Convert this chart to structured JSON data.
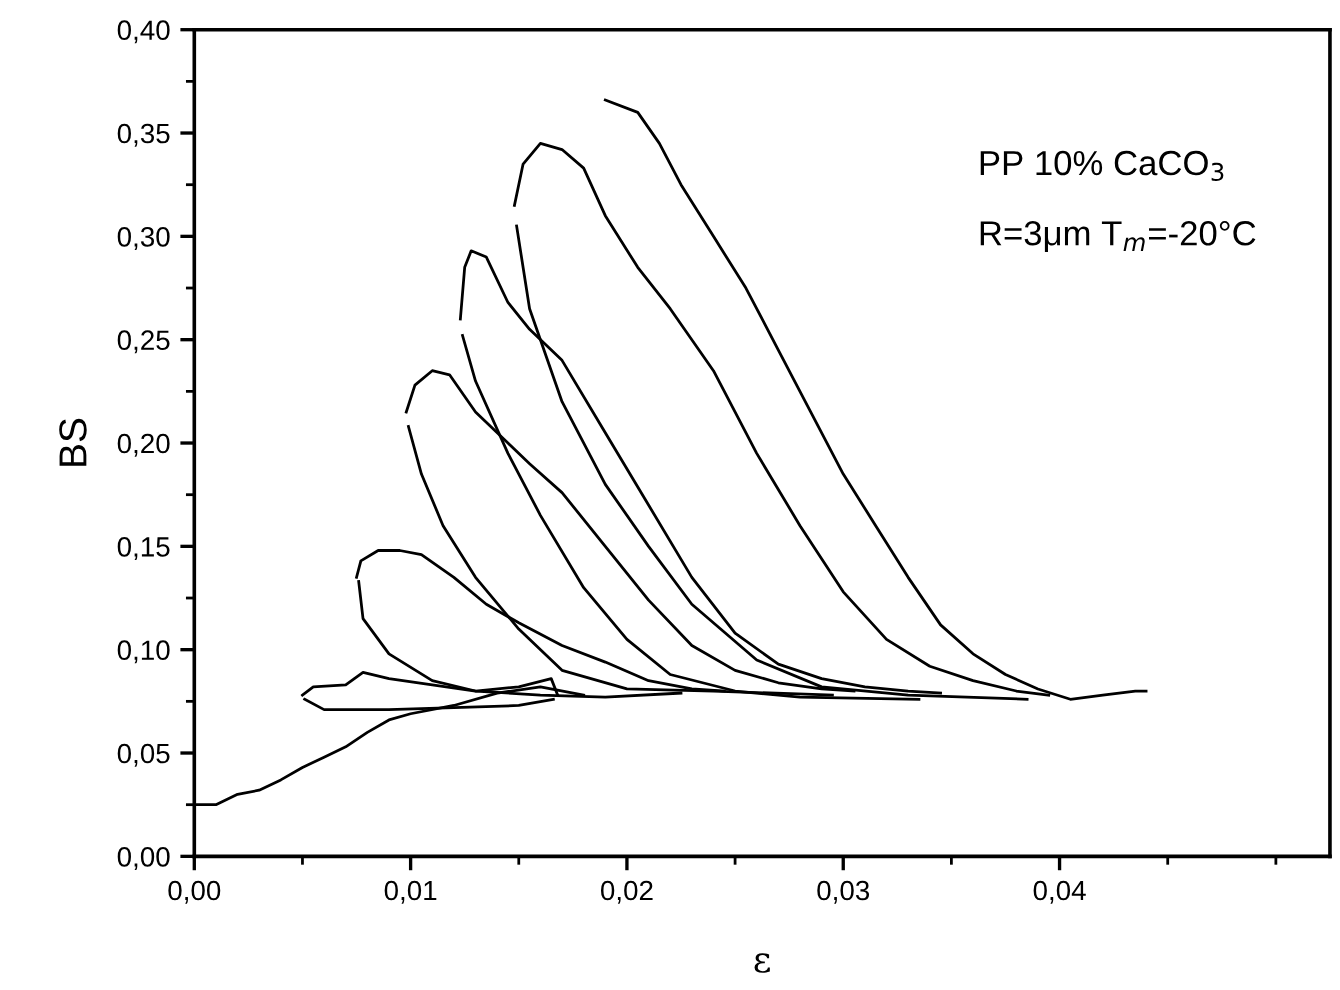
{
  "chart_data": {
    "type": "line",
    "xlabel": "ε",
    "ylabel": "BS",
    "annotations": [
      "PP 10% CaCO$_{3}$",
      "R=3μm T$_{m}$=-20°C"
    ],
    "xlim": [
      0,
      0.0525
    ],
    "ylim": [
      0,
      0.4
    ],
    "xticks": [
      {
        "value": 0,
        "label": "0,00"
      },
      {
        "value": 0.01,
        "label": "0,01"
      },
      {
        "value": 0.02,
        "label": "0,02"
      },
      {
        "value": 0.03,
        "label": "0,03"
      },
      {
        "value": 0.04,
        "label": "0,04"
      }
    ],
    "yticks": [
      {
        "value": 0,
        "label": "0,00"
      },
      {
        "value": 0.05,
        "label": "0,05"
      },
      {
        "value": 0.1,
        "label": "0,10"
      },
      {
        "value": 0.15,
        "label": "0,15"
      },
      {
        "value": 0.2,
        "label": "0,20"
      },
      {
        "value": 0.25,
        "label": "0,25"
      },
      {
        "value": 0.3,
        "label": "0,30"
      },
      {
        "value": 0.35,
        "label": "0,35"
      },
      {
        "value": 0.4,
        "label": "0,40"
      }
    ],
    "grid": false,
    "legend": false,
    "marker": "none",
    "line_style": "solid",
    "series": [
      {
        "color": "#000000",
        "x": [
          0,
          0.001,
          0.002,
          0.003,
          0.004,
          0.005,
          0.006,
          0.007,
          0.008,
          0.009,
          0.01,
          0.012,
          0.014,
          0.016,
          0.018
        ],
        "values": [
          0.025,
          0.025,
          0.03,
          0.032,
          0.037,
          0.043,
          0.048,
          0.053,
          0.06,
          0.066,
          0.069,
          0.073,
          0.079,
          0.082,
          0.078
        ]
      },
      {
        "color": "#000000",
        "x": [
          0.005,
          0.0055,
          0.007,
          0.0078,
          0.009,
          0.011,
          0.013,
          0.015,
          0.0165,
          0.0168
        ],
        "values": [
          0.078,
          0.082,
          0.083,
          0.089,
          0.086,
          0.083,
          0.08,
          0.082,
          0.086,
          0.078
        ]
      },
      {
        "color": "#000000",
        "x": [
          0.0051,
          0.006,
          0.009,
          0.012,
          0.015,
          0.0166
        ],
        "values": [
          0.076,
          0.071,
          0.071,
          0.072,
          0.073,
          0.076
        ]
      },
      {
        "color": "#000000",
        "x": [
          0.0075,
          0.0077,
          0.0085,
          0.0095,
          0.0105,
          0.012,
          0.0135,
          0.015,
          0.017,
          0.019,
          0.021,
          0.023,
          0.0245
        ],
        "values": [
          0.135,
          0.143,
          0.148,
          0.148,
          0.146,
          0.135,
          0.122,
          0.113,
          0.102,
          0.094,
          0.085,
          0.081,
          0.08
        ]
      },
      {
        "color": "#000000",
        "x": [
          0.0076,
          0.0078,
          0.009,
          0.011,
          0.013,
          0.016,
          0.019,
          0.0225
        ],
        "values": [
          0.133,
          0.115,
          0.098,
          0.085,
          0.08,
          0.078,
          0.077,
          0.079
        ]
      },
      {
        "color": "#000000",
        "x": [
          0.0098,
          0.0102,
          0.011,
          0.0118,
          0.013,
          0.0145,
          0.0155,
          0.017,
          0.019,
          0.021,
          0.023,
          0.025,
          0.027,
          0.029,
          0.0305
        ],
        "values": [
          0.215,
          0.228,
          0.235,
          0.233,
          0.215,
          0.2,
          0.19,
          0.176,
          0.15,
          0.124,
          0.102,
          0.09,
          0.084,
          0.081,
          0.08
        ]
      },
      {
        "color": "#000000",
        "x": [
          0.0099,
          0.0105,
          0.0115,
          0.013,
          0.015,
          0.017,
          0.02,
          0.024,
          0.0295
        ],
        "values": [
          0.208,
          0.185,
          0.16,
          0.135,
          0.11,
          0.09,
          0.081,
          0.08,
          0.078
        ]
      },
      {
        "color": "#000000",
        "x": [
          0.0123,
          0.0125,
          0.0128,
          0.0135,
          0.0145,
          0.0155,
          0.017,
          0.019,
          0.021,
          0.023,
          0.025,
          0.027,
          0.029,
          0.031,
          0.033,
          0.0345
        ],
        "values": [
          0.26,
          0.285,
          0.293,
          0.29,
          0.268,
          0.255,
          0.24,
          0.205,
          0.17,
          0.135,
          0.108,
          0.093,
          0.086,
          0.082,
          0.08,
          0.079
        ]
      },
      {
        "color": "#000000",
        "x": [
          0.0124,
          0.013,
          0.0145,
          0.016,
          0.018,
          0.02,
          0.022,
          0.025,
          0.028,
          0.0335
        ],
        "values": [
          0.252,
          0.23,
          0.195,
          0.165,
          0.13,
          0.105,
          0.088,
          0.08,
          0.077,
          0.076
        ]
      },
      {
        "color": "#000000",
        "x": [
          0.0148,
          0.0152,
          0.016,
          0.017,
          0.018,
          0.019,
          0.0205,
          0.022,
          0.024,
          0.026,
          0.028,
          0.03,
          0.032,
          0.034,
          0.036,
          0.038,
          0.0395
        ],
        "values": [
          0.315,
          0.335,
          0.345,
          0.342,
          0.333,
          0.31,
          0.285,
          0.265,
          0.235,
          0.195,
          0.16,
          0.128,
          0.105,
          0.092,
          0.085,
          0.08,
          0.078
        ]
      },
      {
        "color": "#000000",
        "x": [
          0.0149,
          0.0155,
          0.017,
          0.019,
          0.021,
          0.023,
          0.026,
          0.029,
          0.033,
          0.0385
        ],
        "values": [
          0.305,
          0.265,
          0.22,
          0.18,
          0.15,
          0.122,
          0.095,
          0.082,
          0.078,
          0.076
        ]
      },
      {
        "color": "#000000",
        "x": [
          0.019,
          0.0205,
          0.0215,
          0.0225,
          0.024,
          0.0255,
          0.027,
          0.0285,
          0.03,
          0.0315,
          0.033,
          0.0345,
          0.036,
          0.0375,
          0.039,
          0.0405,
          0.042,
          0.0435,
          0.044
        ],
        "values": [
          0.366,
          0.36,
          0.345,
          0.325,
          0.3,
          0.275,
          0.245,
          0.215,
          0.185,
          0.16,
          0.135,
          0.112,
          0.098,
          0.088,
          0.081,
          0.076,
          0.078,
          0.08,
          0.08
        ]
      }
    ]
  }
}
